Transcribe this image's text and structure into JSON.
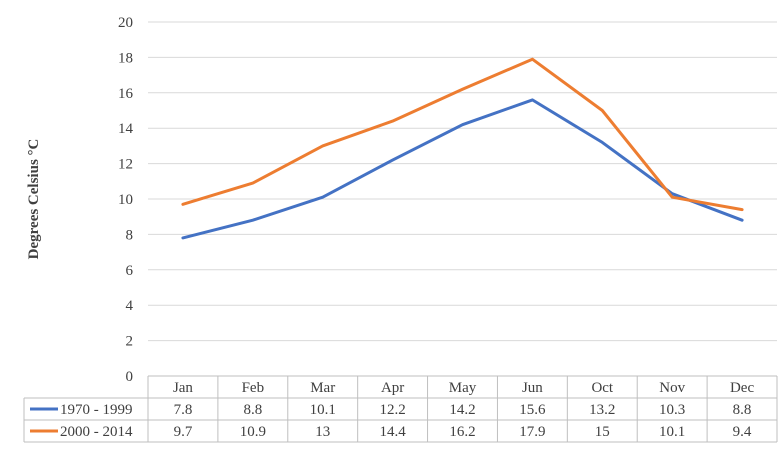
{
  "chart_data": {
    "type": "line",
    "title": "",
    "xlabel": "",
    "ylabel": "Degrees Celsius °C",
    "ylim": [
      0,
      20
    ],
    "y_ticks": [
      0,
      2,
      4,
      6,
      8,
      10,
      12,
      14,
      16,
      18,
      20
    ],
    "grid": true,
    "legend": "data-table-left",
    "categories": [
      "Jan",
      "Feb",
      "Mar",
      "Apr",
      "May",
      "Jun",
      "Oct",
      "Nov",
      "Dec"
    ],
    "series": [
      {
        "name": "1970 - 1999",
        "color": "#4472c4",
        "values": [
          7.8,
          8.8,
          10.1,
          12.2,
          14.2,
          15.6,
          13.2,
          10.3,
          8.8
        ],
        "value_labels": [
          "7.8",
          "8.8",
          "10.1",
          "12.2",
          "14.2",
          "15.6",
          "13.2",
          "10.3",
          "8.8"
        ]
      },
      {
        "name": "2000 - 2014",
        "color": "#ed7d31",
        "values": [
          9.7,
          10.9,
          13,
          14.4,
          16.2,
          17.9,
          15,
          10.1,
          9.4
        ],
        "value_labels": [
          "9.7",
          "10.9",
          "13",
          "14.4",
          "16.2",
          "17.9",
          "15",
          "10.1",
          "9.4"
        ]
      }
    ]
  }
}
